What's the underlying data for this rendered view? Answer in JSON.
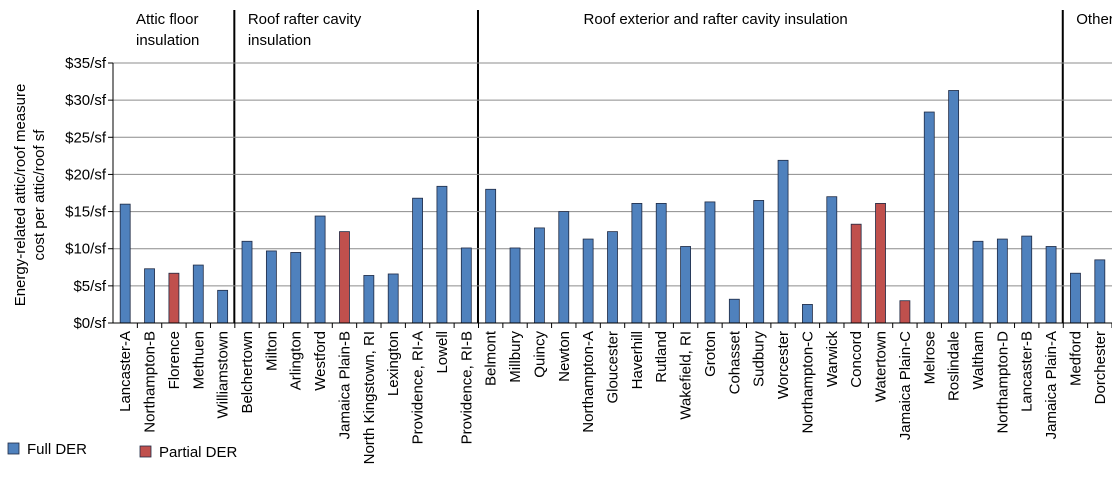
{
  "chart_data": {
    "type": "bar",
    "ylabel_lines": [
      "Energy-related attic/roof measure",
      "cost per  attic/roof sf"
    ],
    "yticks": [
      "$0/sf",
      "$5/sf",
      "$10/sf",
      "$15/sf",
      "$20/sf",
      "$25/sf",
      "$30/sf",
      "$35/sf"
    ],
    "ylim": [
      0,
      35
    ],
    "grid": true,
    "legend_position": "bottom-left",
    "regions": [
      {
        "lines": [
          "Attic floor",
          "insulation"
        ],
        "start": 0,
        "end": 5
      },
      {
        "lines": [
          "Roof rafter cavity",
          "insulation"
        ],
        "start": 5,
        "end": 15
      },
      {
        "lines": [
          "Roof exterior and rafter cavity insulation"
        ],
        "start": 15,
        "end": 39
      },
      {
        "lines": [
          "Other"
        ],
        "start": 39,
        "end": 42
      }
    ],
    "series": [
      {
        "name": "Full DER",
        "color": "#4F81BD"
      },
      {
        "name": "Partial DER",
        "color": "#C0504D"
      }
    ],
    "categories": [
      "Lancaster-A",
      "Northampton-B",
      "Florence",
      "Methuen",
      "Williamstown",
      "Belchertown",
      "Milton",
      "Arlington",
      "Westford",
      "Jamaica Plain-B",
      "North Kingstown, RI",
      "Lexington",
      "Providence, RI-A",
      "Lowell",
      "Providence, RI-B",
      "Belmont",
      "Millbury",
      "Quincy",
      "Newton",
      "Northampton-A",
      "Gloucester",
      "Haverhill",
      "Rutland",
      "Wakefield, RI",
      "Groton",
      "Cohasset",
      "Sudbury",
      "Worcester",
      "Northampton-C",
      "Warwick",
      "Concord",
      "Watertown",
      "Jamaica Plain-C",
      "Melrose",
      "Roslindale",
      "Waltham",
      "Northampton-D",
      "Lancaster-B",
      "Jamaica Plain-A",
      "Medford",
      "Dorchester"
    ],
    "values": [
      16.0,
      7.3,
      6.7,
      7.8,
      4.4,
      11.0,
      9.7,
      9.5,
      14.4,
      12.3,
      6.4,
      6.6,
      16.8,
      18.4,
      10.1,
      18.0,
      10.1,
      12.8,
      15.0,
      11.3,
      12.3,
      16.1,
      16.1,
      10.3,
      16.3,
      3.2,
      16.5,
      21.9,
      2.5,
      17.0,
      13.3,
      16.1,
      3.0,
      28.4,
      31.3,
      11.0,
      11.3,
      11.7,
      10.3,
      6.7,
      8.5
    ],
    "series_index": [
      0,
      0,
      1,
      0,
      0,
      0,
      0,
      0,
      0,
      1,
      0,
      0,
      0,
      0,
      0,
      0,
      0,
      0,
      0,
      0,
      0,
      0,
      0,
      0,
      0,
      0,
      0,
      0,
      0,
      0,
      1,
      1,
      1,
      0,
      0,
      0,
      0,
      0,
      0,
      0,
      0
    ]
  }
}
